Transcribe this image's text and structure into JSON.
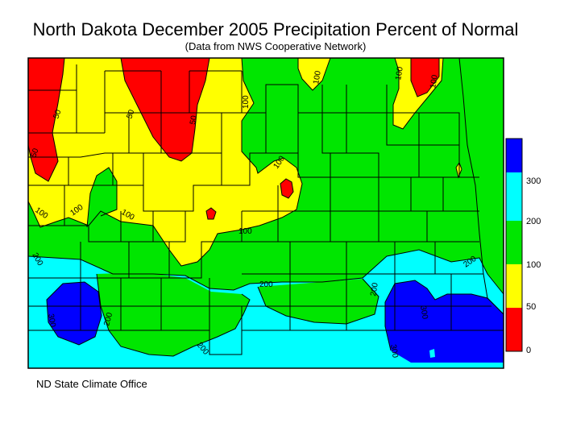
{
  "title": "North Dakota December 2005 Precipitation Percent of Normal",
  "subtitle": "(Data from NWS Cooperative Network)",
  "credit": "ND State Climate Office",
  "legend": {
    "ticks": [
      "300",
      "200",
      "100",
      "50",
      "0"
    ],
    "classes": [
      {
        "range": "300+",
        "color": "#0000ff"
      },
      {
        "range": "200-300",
        "color": "#00ffff"
      },
      {
        "range": "100-200",
        "color": "#00e600"
      },
      {
        "range": "50-100",
        "color": "#ffff00"
      },
      {
        "range": "0-50",
        "color": "#ff0000"
      }
    ]
  },
  "contour_labels": [
    "50",
    "50",
    "50",
    "50",
    "100",
    "100",
    "100",
    "100",
    "100",
    "100",
    "100",
    "100",
    "100",
    "200",
    "200",
    "200",
    "200",
    "200",
    "200",
    "300",
    "300",
    "300"
  ]
}
